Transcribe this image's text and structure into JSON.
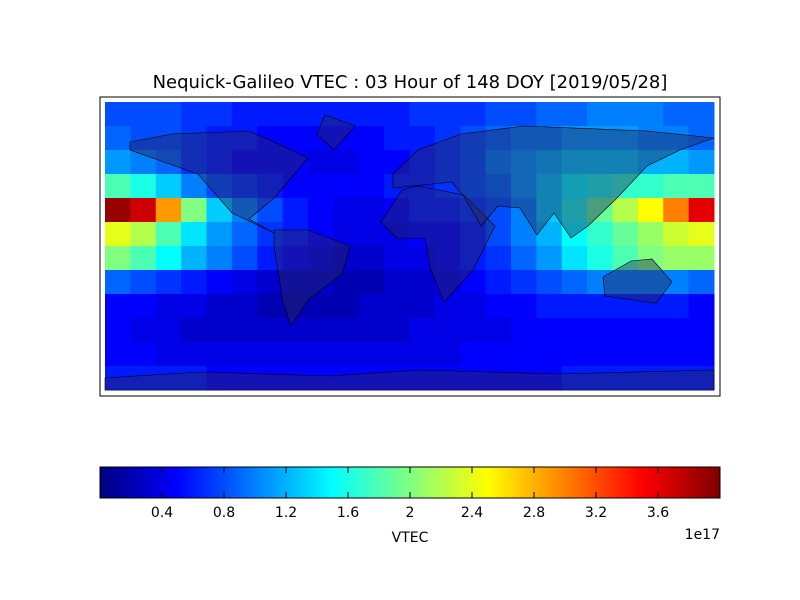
{
  "chart_data": {
    "type": "heatmap",
    "title": "Nequick-Galileo VTEC : 03 Hour of 148 DOY [2019/05/28]",
    "colormap": "jet",
    "values": [
      [
        0.8,
        0.8,
        0.8,
        0.7,
        0.7,
        0.6,
        0.6,
        0.6,
        0.6,
        0.6,
        0.6,
        0.6,
        0.7,
        0.7,
        0.7,
        0.8,
        0.8,
        0.9,
        0.9,
        1.0,
        1.0,
        1.0,
        0.9,
        0.9
      ],
      [
        0.9,
        0.8,
        0.8,
        0.7,
        0.6,
        0.6,
        0.5,
        0.5,
        0.5,
        0.5,
        0.5,
        0.6,
        0.6,
        0.7,
        0.8,
        0.9,
        1.0,
        1.0,
        1.1,
        1.1,
        1.1,
        1.0,
        1.0,
        0.9
      ],
      [
        1.1,
        1.0,
        0.9,
        0.7,
        0.6,
        0.5,
        0.5,
        0.5,
        0.4,
        0.4,
        0.5,
        0.5,
        0.6,
        0.7,
        0.8,
        1.0,
        1.1,
        1.2,
        1.3,
        1.3,
        1.3,
        1.2,
        1.2,
        1.1
      ],
      [
        1.8,
        1.6,
        1.3,
        1.0,
        0.8,
        0.7,
        0.6,
        0.5,
        0.5,
        0.5,
        0.5,
        0.6,
        0.6,
        0.7,
        0.8,
        0.9,
        1.1,
        1.3,
        1.5,
        1.6,
        1.7,
        1.7,
        1.8,
        1.8
      ],
      [
        3.9,
        3.7,
        2.9,
        2.0,
        1.3,
        1.0,
        0.8,
        0.6,
        0.5,
        0.4,
        0.4,
        0.5,
        0.6,
        0.6,
        0.7,
        0.8,
        1.0,
        1.3,
        1.6,
        1.9,
        2.2,
        2.5,
        3.0,
        3.6
      ],
      [
        2.4,
        2.2,
        1.8,
        1.4,
        1.1,
        0.9,
        0.7,
        0.6,
        0.5,
        0.4,
        0.4,
        0.4,
        0.5,
        0.5,
        0.6,
        0.8,
        1.0,
        1.2,
        1.5,
        1.7,
        1.9,
        2.1,
        2.3,
        2.4
      ],
      [
        2.0,
        1.8,
        1.5,
        1.2,
        1.0,
        0.8,
        0.6,
        0.5,
        0.4,
        0.3,
        0.3,
        0.4,
        0.4,
        0.5,
        0.6,
        0.7,
        0.9,
        1.1,
        1.4,
        1.6,
        1.8,
        2.0,
        2.1,
        2.1
      ],
      [
        0.9,
        0.8,
        0.7,
        0.6,
        0.5,
        0.4,
        0.3,
        0.3,
        0.3,
        0.2,
        0.2,
        0.3,
        0.3,
        0.4,
        0.5,
        0.6,
        0.7,
        0.8,
        0.9,
        1.0,
        1.0,
        1.0,
        1.0,
        0.9
      ],
      [
        0.5,
        0.5,
        0.4,
        0.4,
        0.3,
        0.3,
        0.2,
        0.2,
        0.2,
        0.2,
        0.3,
        0.3,
        0.3,
        0.4,
        0.4,
        0.5,
        0.5,
        0.6,
        0.6,
        0.6,
        0.6,
        0.6,
        0.6,
        0.5
      ],
      [
        0.5,
        0.4,
        0.4,
        0.3,
        0.3,
        0.3,
        0.3,
        0.3,
        0.3,
        0.3,
        0.3,
        0.3,
        0.4,
        0.4,
        0.4,
        0.4,
        0.5,
        0.5,
        0.5,
        0.5,
        0.5,
        0.5,
        0.5,
        0.5
      ],
      [
        0.5,
        0.5,
        0.4,
        0.4,
        0.4,
        0.4,
        0.4,
        0.4,
        0.4,
        0.4,
        0.4,
        0.4,
        0.4,
        0.4,
        0.5,
        0.5,
        0.5,
        0.5,
        0.5,
        0.5,
        0.5,
        0.5,
        0.5,
        0.5
      ],
      [
        0.6,
        0.6,
        0.6,
        0.6,
        0.5,
        0.5,
        0.5,
        0.5,
        0.5,
        0.5,
        0.5,
        0.5,
        0.5,
        0.5,
        0.5,
        0.5,
        0.5,
        0.5,
        0.6,
        0.6,
        0.6,
        0.6,
        0.6,
        0.6
      ]
    ],
    "colorbar": {
      "label": "VTEC",
      "lim": [
        0,
        4.0
      ],
      "ticks": [
        0.4,
        0.8,
        1.2,
        1.6,
        2.0,
        2.4,
        2.8,
        3.2,
        3.6
      ],
      "offset_label": "1e17"
    }
  }
}
